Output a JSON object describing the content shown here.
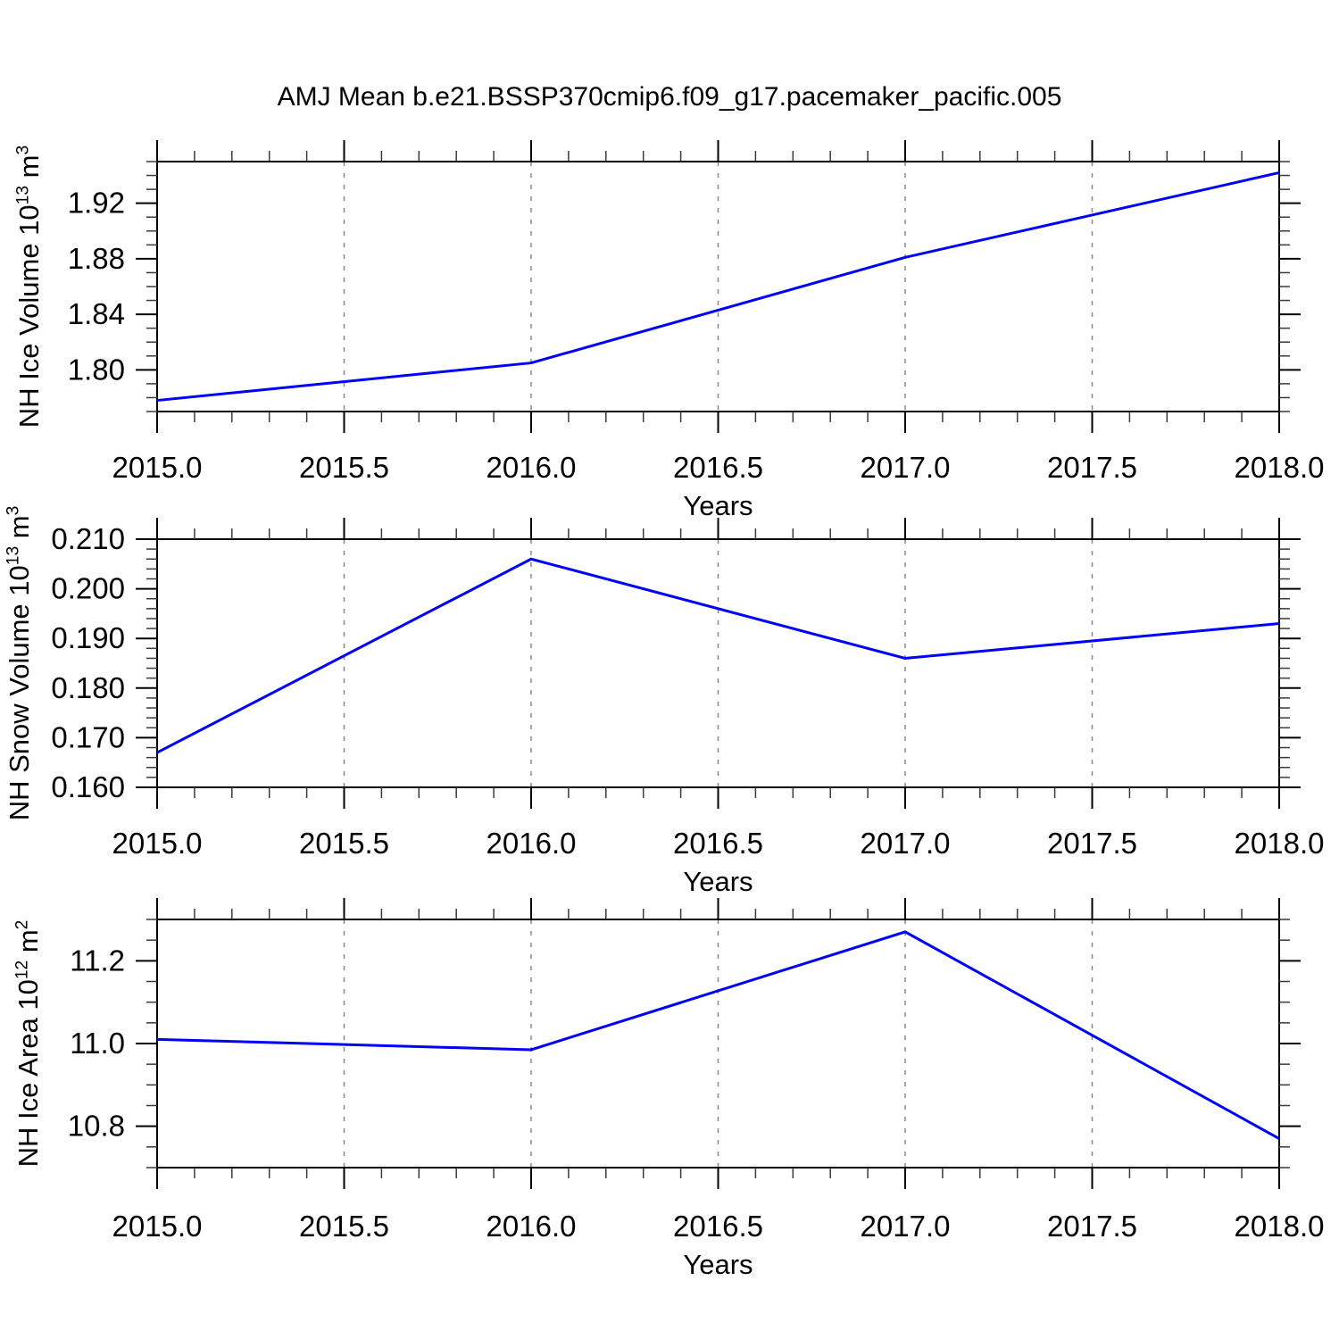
{
  "figure_title": "AMJ Mean b.e21.BSSP370cmip6.f09_g17.pacemaker_pacific.005",
  "line_color": "#0000ff",
  "chart_data": [
    {
      "id": "nh-ice-volume",
      "type": "line",
      "ylabel": {
        "base": "NH Ice Volume 10",
        "exp": "13",
        "unit": " m",
        "unit_exp": "3"
      },
      "xlabel": "Years",
      "x": [
        2015.0,
        2016.0,
        2017.0,
        2018.0
      ],
      "values": [
        1.778,
        1.805,
        1.881,
        1.942
      ],
      "xlim": [
        2015.0,
        2018.0
      ],
      "ylim": [
        1.77,
        1.95
      ],
      "xticks": {
        "values": [
          2015.0,
          2015.5,
          2016.0,
          2016.5,
          2017.0,
          2017.5,
          2018.0
        ],
        "labels": [
          "2015.0",
          "2015.5",
          "2016.0",
          "2016.5",
          "2017.0",
          "2017.5",
          "2018.0"
        ]
      },
      "yticks": {
        "values": [
          1.8,
          1.84,
          1.88,
          1.92
        ],
        "labels": [
          "1.80",
          "1.84",
          "1.88",
          "1.92"
        ]
      },
      "xminor_step": 0.1,
      "yminor_step": 0.01,
      "grid_x": [
        2015.5,
        2016.0,
        2016.5,
        2017.0,
        2017.5
      ],
      "grid_on": true,
      "legend": "none",
      "line_color": "#0000ff"
    },
    {
      "id": "nh-snow-volume",
      "type": "line",
      "ylabel": {
        "base": "NH Snow Volume 10",
        "exp": "13",
        "unit": " m",
        "unit_exp": "3"
      },
      "xlabel": "Years",
      "x": [
        2015.0,
        2016.0,
        2017.0,
        2018.0
      ],
      "values": [
        0.167,
        0.206,
        0.186,
        0.193
      ],
      "xlim": [
        2015.0,
        2018.0
      ],
      "ylim": [
        0.16,
        0.21
      ],
      "xticks": {
        "values": [
          2015.0,
          2015.5,
          2016.0,
          2016.5,
          2017.0,
          2017.5,
          2018.0
        ],
        "labels": [
          "2015.0",
          "2015.5",
          "2016.0",
          "2016.5",
          "2017.0",
          "2017.5",
          "2018.0"
        ]
      },
      "yticks": {
        "values": [
          0.16,
          0.17,
          0.18,
          0.19,
          0.2,
          0.21
        ],
        "labels": [
          "0.160",
          "0.170",
          "0.180",
          "0.190",
          "0.200",
          "0.210"
        ]
      },
      "xminor_step": 0.1,
      "yminor_step": 0.002,
      "grid_x": [
        2015.5,
        2016.0,
        2016.5,
        2017.0,
        2017.5
      ],
      "grid_on": true,
      "legend": "none",
      "line_color": "#0000ff"
    },
    {
      "id": "nh-ice-area",
      "type": "line",
      "ylabel": {
        "base": "NH Ice Area 10",
        "exp": "12",
        "unit": " m",
        "unit_exp": "2"
      },
      "xlabel": "Years",
      "x": [
        2015.0,
        2016.0,
        2017.0,
        2018.0
      ],
      "values": [
        11.01,
        10.985,
        11.27,
        10.77
      ],
      "xlim": [
        2015.0,
        2018.0
      ],
      "ylim": [
        10.7,
        11.3
      ],
      "xticks": {
        "values": [
          2015.0,
          2015.5,
          2016.0,
          2016.5,
          2017.0,
          2017.5,
          2018.0
        ],
        "labels": [
          "2015.0",
          "2015.5",
          "2016.0",
          "2016.5",
          "2017.0",
          "2017.5",
          "2018.0"
        ]
      },
      "yticks": {
        "values": [
          10.8,
          11.0,
          11.2
        ],
        "labels": [
          "10.8",
          "11.0",
          "11.2"
        ]
      },
      "xminor_step": 0.1,
      "yminor_step": 0.05,
      "grid_x": [
        2015.5,
        2016.0,
        2016.5,
        2017.0,
        2017.5
      ],
      "grid_on": true,
      "legend": "none",
      "line_color": "#0000ff"
    }
  ]
}
